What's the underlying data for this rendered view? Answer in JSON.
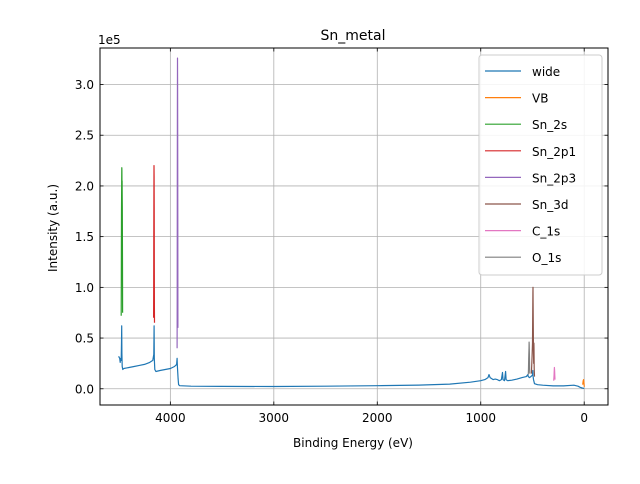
{
  "chart_data": {
    "type": "line",
    "title": "Sn_metal",
    "xlabel": "Binding Energy (eV)",
    "ylabel": "Intensity (a.u.)",
    "y_scale_label": "1e5",
    "x_reversed": true,
    "xlim": [
      4680,
      -230
    ],
    "ylim": [
      -16000,
      336000
    ],
    "x_ticks": [
      {
        "value": 4000,
        "label": "4000"
      },
      {
        "value": 3000,
        "label": "3000"
      },
      {
        "value": 2000,
        "label": "2000"
      },
      {
        "value": 1000,
        "label": "1000"
      },
      {
        "value": 0,
        "label": "0"
      }
    ],
    "y_ticks": [
      {
        "value": 0,
        "label": "0.0"
      },
      {
        "value": 50000,
        "label": "0.5"
      },
      {
        "value": 100000,
        "label": "1.0"
      },
      {
        "value": 150000,
        "label": "1.5"
      },
      {
        "value": 200000,
        "label": "2.0"
      },
      {
        "value": 250000,
        "label": "2.5"
      },
      {
        "value": 300000,
        "label": "3.0"
      }
    ],
    "grid": true,
    "legend_position": "top-right",
    "series": [
      {
        "name": "wide",
        "color": "#1f77b4",
        "points": [
          [
            4500,
            32000
          ],
          [
            4490,
            30000
          ],
          [
            4485,
            26000
          ],
          [
            4480,
            30000
          ],
          [
            4475,
            28000
          ],
          [
            4472,
            45000
          ],
          [
            4470,
            62000
          ],
          [
            4468,
            35000
          ],
          [
            4465,
            22000
          ],
          [
            4460,
            19000
          ],
          [
            4450,
            20000
          ],
          [
            4400,
            21000
          ],
          [
            4350,
            22000
          ],
          [
            4300,
            23000
          ],
          [
            4250,
            24000
          ],
          [
            4200,
            26000
          ],
          [
            4170,
            28000
          ],
          [
            4160,
            34000
          ],
          [
            4157,
            62000
          ],
          [
            4155,
            30000
          ],
          [
            4150,
            19000
          ],
          [
            4140,
            17000
          ],
          [
            4100,
            18000
          ],
          [
            4050,
            19000
          ],
          [
            4000,
            20000
          ],
          [
            3960,
            22000
          ],
          [
            3940,
            24000
          ],
          [
            3935,
            30000
          ],
          [
            3932,
            22000
          ],
          [
            3925,
            10000
          ],
          [
            3920,
            4000
          ],
          [
            3910,
            3000
          ],
          [
            3800,
            2500
          ],
          [
            3500,
            2300
          ],
          [
            3000,
            2200
          ],
          [
            2500,
            2500
          ],
          [
            2000,
            3000
          ],
          [
            1600,
            3600
          ],
          [
            1300,
            4600
          ],
          [
            1100,
            6500
          ],
          [
            1000,
            8000
          ],
          [
            960,
            9000
          ],
          [
            930,
            11000
          ],
          [
            920,
            14000
          ],
          [
            910,
            11000
          ],
          [
            880,
            9000
          ],
          [
            860,
            9500
          ],
          [
            840,
            9000
          ],
          [
            820,
            8000
          ],
          [
            800,
            9000
          ],
          [
            790,
            16000
          ],
          [
            785,
            9000
          ],
          [
            770,
            8000
          ],
          [
            760,
            17000
          ],
          [
            755,
            9000
          ],
          [
            740,
            8000
          ],
          [
            700,
            8500
          ],
          [
            650,
            9500
          ],
          [
            600,
            11000
          ],
          [
            560,
            12000
          ],
          [
            545,
            14000
          ],
          [
            540,
            12000
          ],
          [
            530,
            11000
          ],
          [
            515,
            12000
          ],
          [
            505,
            13000
          ],
          [
            500,
            14000
          ],
          [
            497,
            18000
          ],
          [
            495,
            13000
          ],
          [
            490,
            9000
          ],
          [
            480,
            5000
          ],
          [
            450,
            4000
          ],
          [
            400,
            3500
          ],
          [
            300,
            2800
          ],
          [
            200,
            2800
          ],
          [
            100,
            3500
          ],
          [
            60,
            2500
          ],
          [
            40,
            1500
          ],
          [
            20,
            800
          ],
          [
            5,
            500
          ],
          [
            0,
            300
          ]
        ]
      },
      {
        "name": "VB",
        "color": "#ff7f0e",
        "points": [
          [
            15,
            4000
          ],
          [
            10,
            8000
          ],
          [
            6,
            9000
          ],
          [
            3,
            6000
          ],
          [
            0,
            3000
          ],
          [
            -2,
            2000
          ]
        ]
      },
      {
        "name": "Sn_2s",
        "color": "#2ca02c",
        "points": [
          [
            4475,
            72000
          ],
          [
            4474,
            98000
          ],
          [
            4473,
            140000
          ],
          [
            4472,
            175000
          ],
          [
            4471,
            190000
          ],
          [
            4470,
            205000
          ],
          [
            4469,
            218000
          ],
          [
            4468,
            215000
          ],
          [
            4467,
            195000
          ],
          [
            4466,
            205000
          ],
          [
            4465,
            190000
          ],
          [
            4464,
            180000
          ],
          [
            4463,
            120000
          ],
          [
            4462,
            75000
          ]
        ]
      },
      {
        "name": "Sn_2p1",
        "color": "#d62728",
        "points": [
          [
            4162,
            70000
          ],
          [
            4161,
            95000
          ],
          [
            4160,
            150000
          ],
          [
            4159,
            190000
          ],
          [
            4158,
            220000
          ],
          [
            4157,
            210000
          ],
          [
            4156,
            180000
          ],
          [
            4155,
            120000
          ],
          [
            4154,
            80000
          ],
          [
            4153,
            65000
          ]
        ]
      },
      {
        "name": "Sn_2p3",
        "color": "#9467bd",
        "points": [
          [
            3935,
            40000
          ],
          [
            3934,
            90000
          ],
          [
            3933,
            200000
          ],
          [
            3932,
            280000
          ],
          [
            3931,
            326000
          ],
          [
            3930,
            300000
          ],
          [
            3929,
            240000
          ],
          [
            3928,
            170000
          ],
          [
            3927,
            60000
          ]
        ]
      },
      {
        "name": "Sn_3d",
        "color": "#8c564b",
        "points": [
          [
            510,
            15000
          ],
          [
            505,
            30000
          ],
          [
            500,
            45000
          ],
          [
            498,
            70000
          ],
          [
            496,
            95000
          ],
          [
            495,
            100000
          ],
          [
            494,
            85000
          ],
          [
            492,
            60000
          ],
          [
            490,
            35000
          ],
          [
            488,
            25000
          ],
          [
            487,
            30000
          ],
          [
            486,
            45000
          ],
          [
            485,
            40000
          ],
          [
            483,
            20000
          ],
          [
            480,
            12000
          ]
        ]
      },
      {
        "name": "C_1s",
        "color": "#e377c2",
        "points": [
          [
            295,
            8000
          ],
          [
            292,
            12000
          ],
          [
            290,
            17000
          ],
          [
            288,
            21000
          ],
          [
            286,
            18000
          ],
          [
            284,
            13000
          ],
          [
            282,
            9000
          ]
        ]
      },
      {
        "name": "O_1s",
        "color": "#7f7f7f",
        "points": [
          [
            540,
            14000
          ],
          [
            538,
            20000
          ],
          [
            536,
            30000
          ],
          [
            534,
            40000
          ],
          [
            533,
            46000
          ],
          [
            532,
            44000
          ],
          [
            530,
            34000
          ],
          [
            528,
            22000
          ],
          [
            526,
            15000
          ]
        ]
      }
    ]
  }
}
